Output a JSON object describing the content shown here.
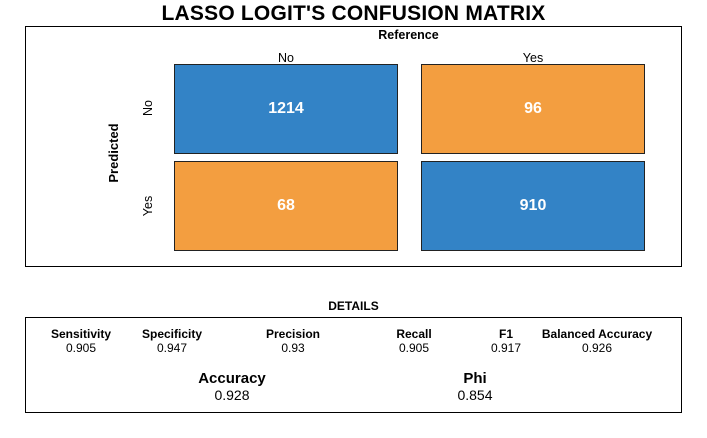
{
  "title": "LASSO LOGIT'S CONFUSION MATRIX",
  "chart_data": {
    "type": "heatmap",
    "title": "LASSO LOGIT'S CONFUSION MATRIX",
    "xlabel": "Reference",
    "ylabel": "Predicted",
    "columns": [
      "No",
      "Yes"
    ],
    "rows": [
      "No",
      "Yes"
    ],
    "values": [
      [
        1214,
        96
      ],
      [
        68,
        910
      ]
    ],
    "colors": {
      "correct": "#3383c6",
      "incorrect": "#f39e40"
    }
  },
  "details": {
    "title": "DETAILS",
    "metrics": [
      {
        "name": "Sensitivity",
        "value": "0.905"
      },
      {
        "name": "Specificity",
        "value": "0.947"
      },
      {
        "name": "Precision",
        "value": "0.93"
      },
      {
        "name": "Recall",
        "value": "0.905"
      },
      {
        "name": "F1",
        "value": "0.917"
      },
      {
        "name": "Balanced Accuracy",
        "value": "0.926"
      }
    ],
    "summary": [
      {
        "name": "Accuracy",
        "value": "0.928"
      },
      {
        "name": "Phi",
        "value": "0.854"
      }
    ]
  }
}
